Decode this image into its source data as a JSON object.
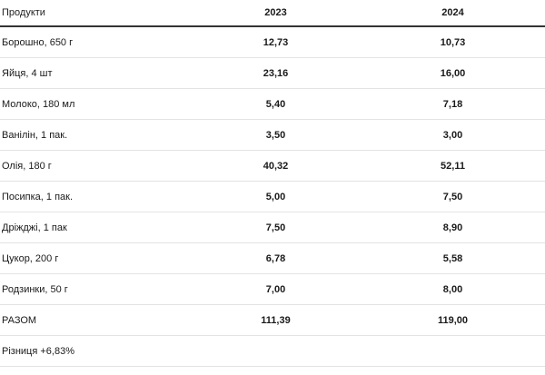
{
  "table": {
    "headers": {
      "name": "Продукти",
      "year1": "2023",
      "year2": "2024"
    },
    "rows": [
      {
        "name": "Борошно, 650 г",
        "v2023": "12,73",
        "v2024": "10,73"
      },
      {
        "name": "Яйця, 4 шт",
        "v2023": "23,16",
        "v2024": "16,00"
      },
      {
        "name": "Молоко, 180 мл",
        "v2023": "5,40",
        "v2024": "7,18"
      },
      {
        "name": "Ванілін, 1 пак.",
        "v2023": "3,50",
        "v2024": "3,00"
      },
      {
        "name": "Олія, 180 г",
        "v2023": "40,32",
        "v2024": "52,11"
      },
      {
        "name": "Посипка, 1 пак.",
        "v2023": "5,00",
        "v2024": "7,50"
      },
      {
        "name": "Дріжджі, 1 пак",
        "v2023": "7,50",
        "v2024": "8,90"
      },
      {
        "name": "Цукор, 200 г",
        "v2023": "6,78",
        "v2024": "5,58"
      },
      {
        "name": "Родзинки, 50 г",
        "v2023": "7,00",
        "v2024": "8,00"
      },
      {
        "name": "РАЗОМ",
        "v2023": "111,39",
        "v2024": "119,00"
      }
    ],
    "note": "Різниця +6,83%"
  }
}
